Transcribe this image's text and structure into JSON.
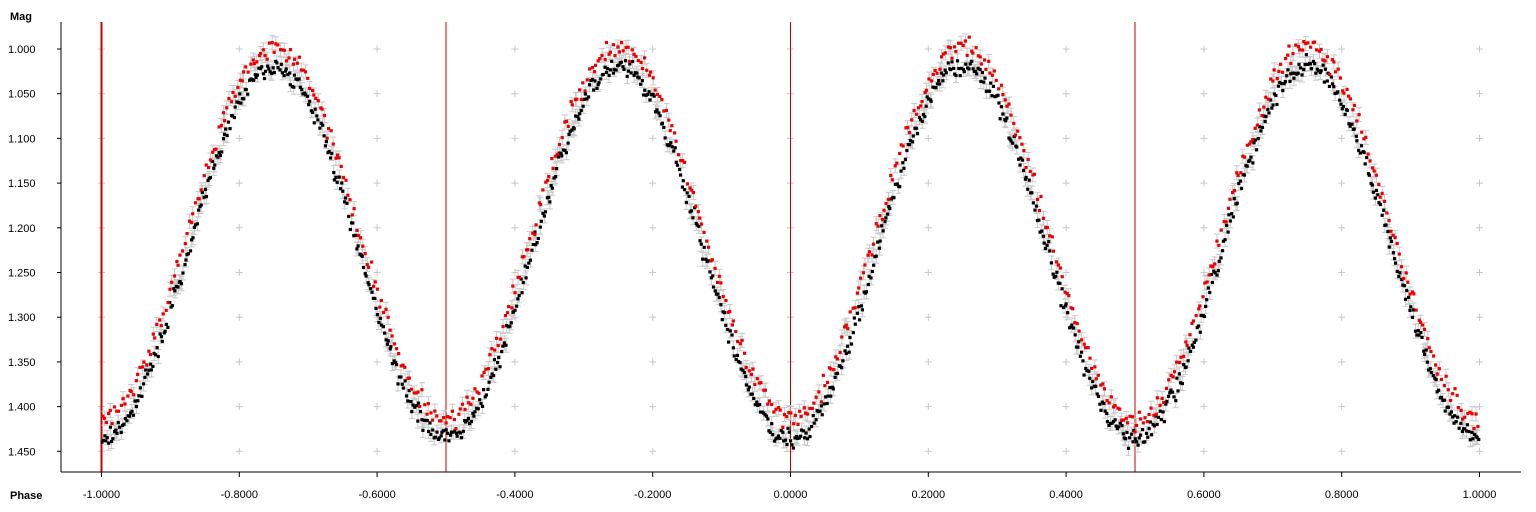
{
  "chart_data": {
    "type": "scatter",
    "xlabel": "Phase",
    "ylabel": "Mag",
    "xlim": [
      -1.08,
      1.08
    ],
    "ylim": [
      0.975,
      1.47
    ],
    "y_inverted": true,
    "grid": "plus-markers",
    "x_ticks": [
      "-1.0000",
      "-0.8000",
      "-0.6000",
      "-0.4000",
      "-0.2000",
      "0.0000",
      "0.2000",
      "0.4000",
      "0.6000",
      "0.8000",
      "1.0000"
    ],
    "y_ticks": [
      "1.000",
      "1.050",
      "1.100",
      "1.150",
      "1.200",
      "1.250",
      "1.300",
      "1.350",
      "1.400",
      "1.450"
    ],
    "light_curve": {
      "period_in_phase": 0.5,
      "minimum_phases": [
        -1.0,
        -0.5,
        0.0,
        0.5
      ],
      "maximum_phases": [
        -0.75,
        -0.25,
        0.25,
        0.75
      ],
      "mag_at_maximum": 1.01,
      "mag_at_minimum": 1.425,
      "phase_range": [
        -1.0,
        1.0
      ]
    },
    "series": [
      {
        "color": "#000000",
        "mag_offset": 0.01,
        "samples": 1000
      },
      {
        "color": "#ee0000",
        "mag_offset": -0.012,
        "samples": 650
      }
    ],
    "error_bar_color": "#c8c8c8",
    "vertical_markers": [
      {
        "phase": -1.0,
        "color": "#cc0000",
        "width": 2
      },
      {
        "phase": -0.5,
        "color": "#cc0000",
        "width": 1
      },
      {
        "phase": 0.0,
        "color": "#cc0000",
        "width": 1
      },
      {
        "phase": 0.5,
        "color": "#cc0000",
        "width": 1
      }
    ]
  }
}
